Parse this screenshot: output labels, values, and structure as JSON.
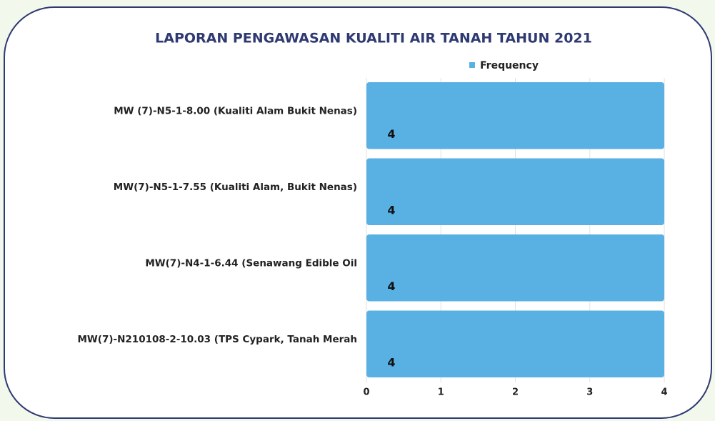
{
  "chart_data": {
    "type": "bar",
    "title": "LAPORAN PENGAWASAN KUALITI AIR TANAH TAHUN 2021",
    "categories": [
      "MW (7)-N5-1-8.00 (Kualiti Alam Bukit Nenas)",
      "MW(7)-N5-1-7.55 (Kualiti Alam, Bukit Nenas)",
      "MW(7)-N4-1-6.44 (Senawang Edible Oil",
      "MW(7)-N210108-2-10.03 (TPS Cypark, Tanah Merah"
    ],
    "series": [
      {
        "name": "Frequency",
        "color": "#59b1e3",
        "values": [
          4,
          4,
          4,
          4
        ]
      }
    ],
    "xlim": [
      0,
      4
    ],
    "xticks": [
      0,
      1,
      2,
      3,
      4
    ],
    "grid": true
  }
}
